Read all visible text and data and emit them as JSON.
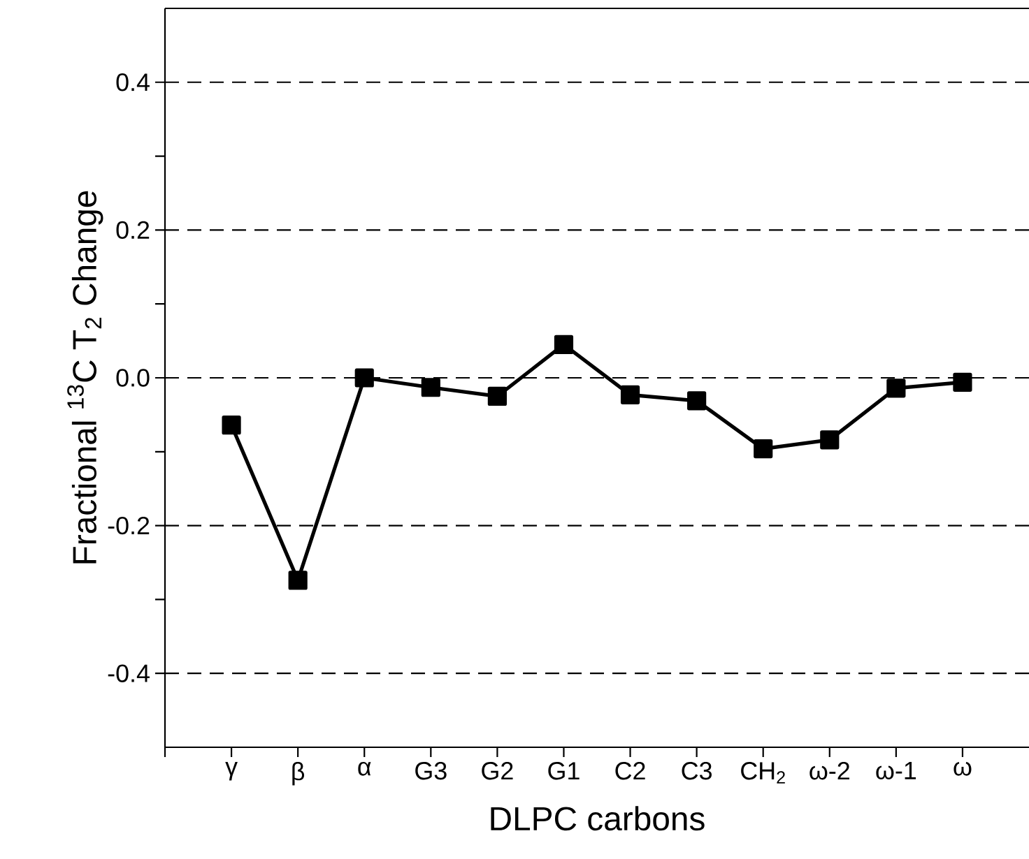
{
  "chart_data": {
    "type": "line",
    "xlabel": "DLPC carbons",
    "ylabel": "Fractional $^{13}$C T$_{2}$ Change",
    "categories": [
      "γ",
      "β",
      "α",
      "G3",
      "G2",
      "G1",
      "C2",
      "C3",
      "CH$_{2}$",
      "ω-2",
      "ω-1",
      "ω"
    ],
    "series": [
      {
        "color": "#000000",
        "values": [
          -0.064,
          -0.274,
          0.0,
          -0.013,
          -0.025,
          0.045,
          -0.023,
          -0.031,
          -0.096,
          -0.084,
          -0.014,
          -0.006
        ]
      }
    ],
    "ylim": [
      -0.5,
      0.5
    ],
    "yticks": [
      -0.4,
      {
        "value": -0.3,
        "label": null
      },
      -0.2,
      {
        "value": -0.1,
        "label": null
      },
      {
        "value": 0,
        "label": "0.0"
      },
      {
        "value": 0.1,
        "label": null
      },
      0.2,
      {
        "value": 0.3,
        "label": null
      },
      0.4
    ],
    "grid": "y",
    "marker": "square",
    "line_style": "solid"
  }
}
